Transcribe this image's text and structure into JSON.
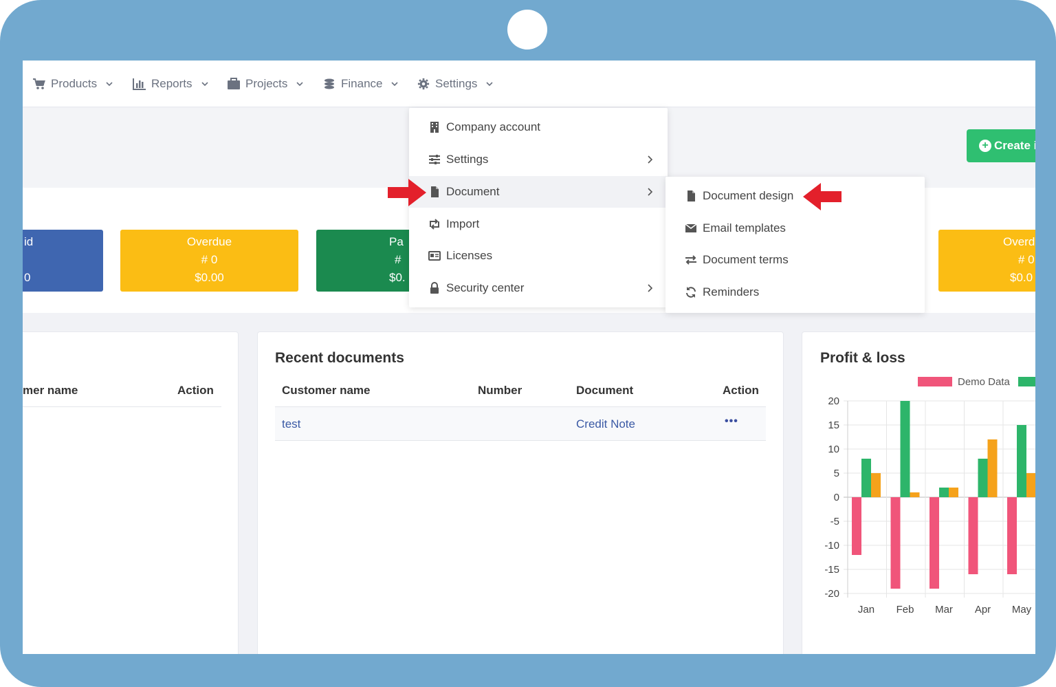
{
  "nav": {
    "items": [
      {
        "label": "Products",
        "icon": "cart-icon"
      },
      {
        "label": "Reports",
        "icon": "bar-chart-icon"
      },
      {
        "label": "Projects",
        "icon": "briefcase-icon"
      },
      {
        "label": "Finance",
        "icon": "coins-icon"
      },
      {
        "label": "Settings",
        "icon": "gear-icon"
      }
    ]
  },
  "create_button": {
    "label": "Create i"
  },
  "stats": {
    "left_partial": {
      "title": "id",
      "count": "",
      "amount": "0"
    },
    "overdue": {
      "title": "Overdue",
      "count": "# 0",
      "amount": "$0.00"
    },
    "paid_partial": {
      "title": "Pa",
      "count": "#",
      "amount": "$0."
    },
    "overdue_right": {
      "title": "Overd",
      "count": "# 0",
      "amount": "$0.0"
    }
  },
  "settings_menu": {
    "items": [
      {
        "label": "Company account",
        "icon": "building-icon",
        "has_submenu": false
      },
      {
        "label": "Settings",
        "icon": "sliders-icon",
        "has_submenu": true
      },
      {
        "label": "Document",
        "icon": "file-icon",
        "has_submenu": true,
        "active": true
      },
      {
        "label": "Import",
        "icon": "retweet-icon",
        "has_submenu": false
      },
      {
        "label": "Licenses",
        "icon": "id-card-icon",
        "has_submenu": false
      },
      {
        "label": "Security center",
        "icon": "lock-icon",
        "has_submenu": true
      }
    ]
  },
  "document_submenu": {
    "items": [
      {
        "label": "Document design",
        "icon": "file-icon"
      },
      {
        "label": "Email templates",
        "icon": "envelope-icon"
      },
      {
        "label": "Document terms",
        "icon": "exchange-icon"
      },
      {
        "label": "Reminders",
        "icon": "refresh-icon"
      }
    ]
  },
  "left_panel": {
    "headers": [
      "mer name",
      "Action"
    ]
  },
  "recent_documents": {
    "title": "Recent documents",
    "headers": [
      "Customer name",
      "Number",
      "Document",
      "Action"
    ],
    "rows": [
      {
        "customer": "test",
        "number": "",
        "document": "Credit Note",
        "action": "•••"
      }
    ]
  },
  "profit_loss": {
    "title": "Profit & loss"
  },
  "chart_data": {
    "type": "bar",
    "title": "Profit & loss",
    "categories": [
      "Jan",
      "Feb",
      "Mar",
      "Apr",
      "May"
    ],
    "series": [
      {
        "name": "Demo Data",
        "color": "#f0557a",
        "values": [
          -12,
          -19,
          -19,
          -16,
          -16
        ]
      },
      {
        "name": "",
        "color": "#2db56a",
        "values": [
          8,
          20,
          2,
          8,
          15
        ]
      },
      {
        "name": "",
        "color": "#f5a21b",
        "values": [
          5,
          1,
          2,
          12,
          5
        ]
      }
    ],
    "ylim": [
      -20,
      20
    ],
    "yticks": [
      20,
      15,
      10,
      5,
      0,
      -5,
      -10,
      -15,
      -20
    ],
    "grid": true,
    "legend": "top"
  }
}
